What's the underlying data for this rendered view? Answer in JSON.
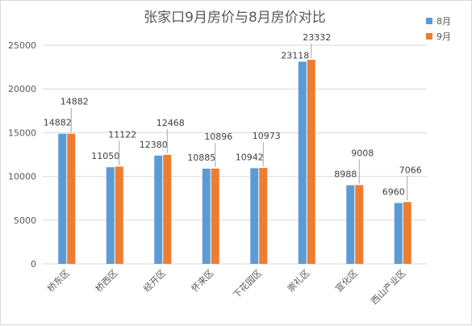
{
  "chart_data": {
    "type": "bar",
    "title": "张家口9月房价与8月房价对比",
    "categories": [
      "桥东区",
      "桥西区",
      "经开区",
      "怀来区",
      "下花园区",
      "崇礼区",
      "宣化区",
      "西山产业区"
    ],
    "series": [
      {
        "name": "8月",
        "color": "#5b9bd5",
        "values": [
          14882,
          11050,
          12380,
          10885,
          10942,
          23118,
          8988,
          6960
        ]
      },
      {
        "name": "9月",
        "color": "#ed7d31",
        "values": [
          14882,
          11122,
          12468,
          10896,
          10973,
          23332,
          9008,
          7066
        ]
      }
    ],
    "yticks": [
      "0",
      "5000",
      "10000",
      "15000",
      "20000",
      "25000"
    ],
    "ylim": [
      0,
      25000
    ],
    "grid": true,
    "legend_position": "top-right",
    "xlabel": "",
    "ylabel": ""
  }
}
